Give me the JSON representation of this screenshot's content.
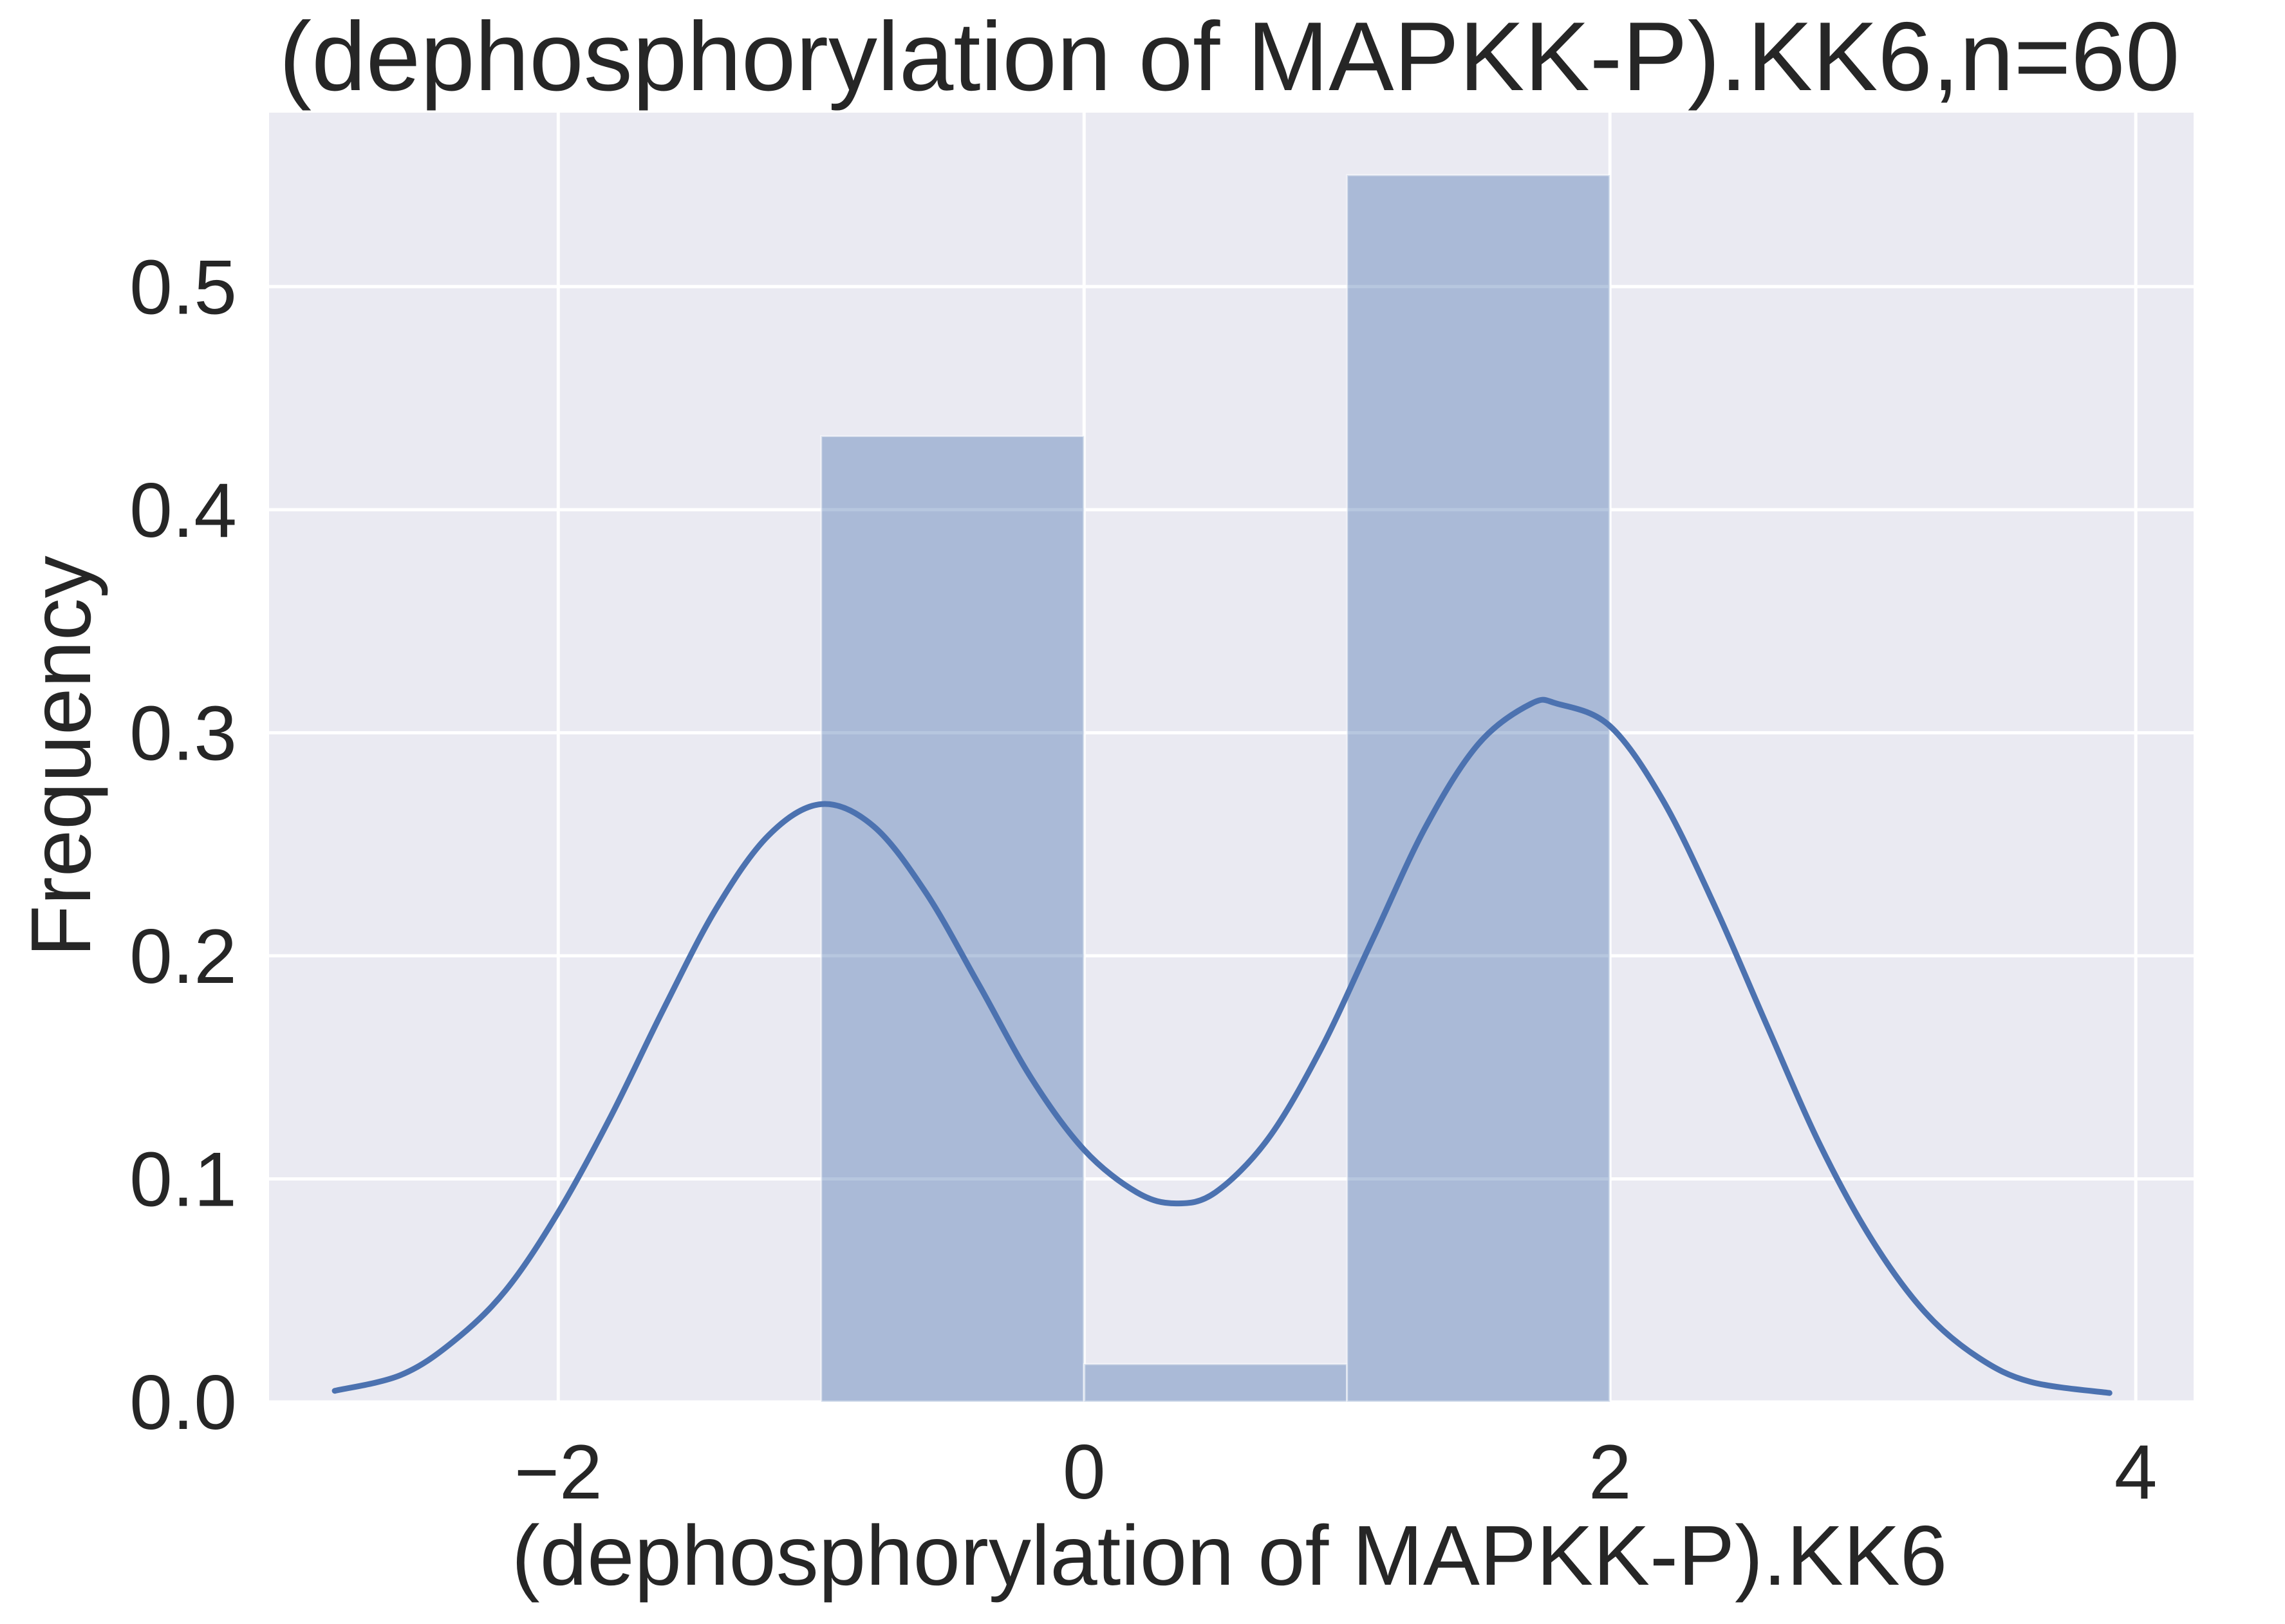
{
  "chart_data": {
    "type": "histogram+kde",
    "title": "(dephosphorylation of MAPKK-P).KK6,n=60",
    "xlabel": "(dephosphorylation of MAPKK-P).KK6",
    "ylabel": "Frequency",
    "xlim": [
      -3.1,
      4.22
    ],
    "ylim": [
      0.0,
      0.578
    ],
    "x_ticks": [
      -2,
      0,
      2,
      4
    ],
    "x_tick_labels": [
      "−2",
      "0",
      "2",
      "4"
    ],
    "y_ticks": [
      0.0,
      0.1,
      0.2,
      0.3,
      0.4,
      0.5
    ],
    "y_tick_labels": [
      "0.0",
      "0.1",
      "0.2",
      "0.3",
      "0.4",
      "0.5"
    ],
    "grid": true,
    "legend": "none",
    "histogram": {
      "bins": [
        {
          "x0": -1.0,
          "x1": 0.0,
          "value": 0.433
        },
        {
          "x0": 0.0,
          "x1": 1.0,
          "value": 0.017
        },
        {
          "x0": 1.0,
          "x1": 2.0,
          "value": 0.55
        }
      ]
    },
    "kde": {
      "points": [
        [
          -2.85,
          0.005
        ],
        [
          -2.6,
          0.012
        ],
        [
          -2.4,
          0.027
        ],
        [
          -2.2,
          0.05
        ],
        [
          -2.0,
          0.085
        ],
        [
          -1.8,
          0.128
        ],
        [
          -1.6,
          0.176
        ],
        [
          -1.4,
          0.221
        ],
        [
          -1.2,
          0.254
        ],
        [
          -1.0,
          0.268
        ],
        [
          -0.8,
          0.258
        ],
        [
          -0.6,
          0.228
        ],
        [
          -0.4,
          0.187
        ],
        [
          -0.2,
          0.145
        ],
        [
          0.0,
          0.113
        ],
        [
          0.2,
          0.094
        ],
        [
          0.35,
          0.089
        ],
        [
          0.5,
          0.094
        ],
        [
          0.7,
          0.118
        ],
        [
          0.9,
          0.158
        ],
        [
          1.1,
          0.208
        ],
        [
          1.3,
          0.258
        ],
        [
          1.5,
          0.295
        ],
        [
          1.7,
          0.313
        ],
        [
          1.8,
          0.313
        ],
        [
          2.0,
          0.303
        ],
        [
          2.2,
          0.27
        ],
        [
          2.4,
          0.222
        ],
        [
          2.6,
          0.168
        ],
        [
          2.8,
          0.115
        ],
        [
          3.0,
          0.072
        ],
        [
          3.2,
          0.04
        ],
        [
          3.4,
          0.02
        ],
        [
          3.6,
          0.009
        ],
        [
          3.9,
          0.004
        ]
      ]
    },
    "colors": {
      "background": "#eaeaf2",
      "grid": "#ffffff",
      "bar_fill": "#4c72b0",
      "bar_opacity": 0.4,
      "kde_line": "#4c72b0",
      "text": "#262626"
    }
  }
}
